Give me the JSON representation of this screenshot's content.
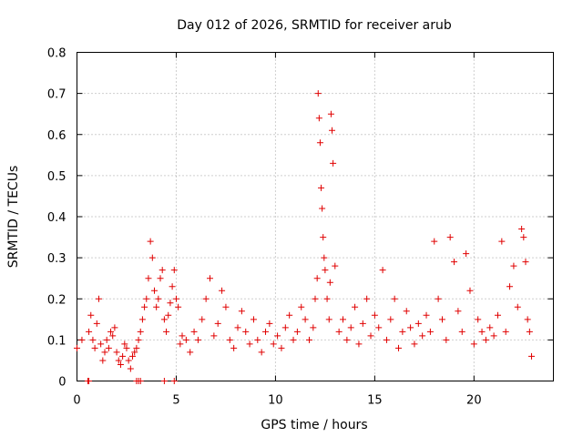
{
  "chart_data": {
    "type": "scatter",
    "title": "Day 012 of 2026, SRMTID for receiver arub",
    "xlabel": "GPS time / hours",
    "ylabel": "SRMTID / TECUs",
    "xlim": [
      0,
      24
    ],
    "ylim": [
      0,
      0.8
    ],
    "x_ticks": [
      0,
      5,
      10,
      15,
      20
    ],
    "x_tick_labels": [
      "0",
      "5",
      "10",
      "15",
      "20"
    ],
    "y_ticks": [
      0,
      0.1,
      0.2,
      0.3,
      0.4,
      0.5,
      0.6,
      0.7,
      0.8
    ],
    "y_tick_labels": [
      "0",
      "0.1",
      "0.2",
      "0.3",
      "0.4",
      "0.5",
      "0.6",
      "0.7",
      "0.8"
    ],
    "grid": true,
    "marker": "plus",
    "color": "#e00000",
    "series": [
      {
        "name": "SRMTID",
        "x": [
          0.0,
          0.25,
          0.6,
          0.7,
          0.8,
          0.9,
          1.0,
          1.1,
          1.2,
          1.3,
          1.4,
          1.5,
          1.6,
          1.7,
          1.8,
          1.9,
          2.0,
          2.1,
          2.2,
          2.3,
          2.4,
          2.5,
          2.6,
          2.7,
          2.8,
          2.9,
          3.0,
          3.1,
          3.2,
          3.3,
          3.4,
          3.5,
          3.6,
          3.7,
          3.8,
          3.9,
          4.0,
          4.1,
          4.2,
          4.3,
          4.4,
          4.5,
          4.6,
          4.7,
          4.8,
          4.9,
          5.0,
          5.1,
          5.2,
          5.3,
          5.5,
          5.7,
          5.9,
          6.1,
          6.3,
          6.5,
          6.7,
          6.9,
          7.1,
          7.3,
          7.5,
          7.7,
          7.9,
          8.1,
          8.3,
          8.5,
          8.7,
          8.9,
          9.1,
          9.3,
          9.5,
          9.7,
          9.9,
          10.1,
          10.3,
          10.5,
          10.7,
          10.9,
          11.1,
          11.3,
          11.5,
          11.7,
          11.9,
          12.0,
          12.1,
          12.15,
          12.2,
          12.25,
          12.3,
          12.35,
          12.4,
          12.45,
          12.5,
          12.6,
          12.7,
          12.75,
          12.8,
          12.85,
          12.9,
          13.0,
          13.2,
          13.4,
          13.6,
          13.8,
          14.0,
          14.2,
          14.4,
          14.6,
          14.8,
          15.0,
          15.2,
          15.4,
          15.6,
          15.8,
          16.0,
          16.2,
          16.4,
          16.6,
          16.8,
          17.0,
          17.2,
          17.4,
          17.6,
          17.8,
          18.0,
          18.2,
          18.4,
          18.6,
          18.8,
          19.0,
          19.2,
          19.4,
          19.6,
          19.8,
          20.0,
          20.2,
          20.4,
          20.6,
          20.8,
          21.0,
          21.2,
          21.4,
          21.6,
          21.8,
          22.0,
          22.2,
          22.4,
          22.5,
          22.6,
          22.7,
          22.8,
          22.9,
          0.55,
          0.6,
          3.0,
          3.1,
          3.2,
          4.4,
          4.9
        ],
        "y": [
          0.08,
          0.1,
          0.12,
          0.16,
          0.1,
          0.08,
          0.14,
          0.2,
          0.09,
          0.05,
          0.07,
          0.1,
          0.08,
          0.12,
          0.11,
          0.13,
          0.07,
          0.05,
          0.04,
          0.06,
          0.09,
          0.08,
          0.05,
          0.03,
          0.06,
          0.07,
          0.08,
          0.1,
          0.12,
          0.15,
          0.18,
          0.2,
          0.25,
          0.34,
          0.3,
          0.22,
          0.18,
          0.2,
          0.25,
          0.27,
          0.15,
          0.12,
          0.16,
          0.19,
          0.23,
          0.27,
          0.2,
          0.18,
          0.09,
          0.11,
          0.1,
          0.07,
          0.12,
          0.1,
          0.15,
          0.2,
          0.25,
          0.11,
          0.14,
          0.22,
          0.18,
          0.1,
          0.08,
          0.13,
          0.17,
          0.12,
          0.09,
          0.15,
          0.1,
          0.07,
          0.12,
          0.14,
          0.09,
          0.11,
          0.08,
          0.13,
          0.16,
          0.1,
          0.12,
          0.18,
          0.15,
          0.1,
          0.13,
          0.2,
          0.25,
          0.7,
          0.64,
          0.58,
          0.47,
          0.42,
          0.35,
          0.3,
          0.27,
          0.2,
          0.15,
          0.24,
          0.65,
          0.61,
          0.53,
          0.28,
          0.12,
          0.15,
          0.1,
          0.13,
          0.18,
          0.09,
          0.14,
          0.2,
          0.11,
          0.16,
          0.13,
          0.27,
          0.1,
          0.15,
          0.2,
          0.08,
          0.12,
          0.17,
          0.13,
          0.09,
          0.14,
          0.11,
          0.16,
          0.12,
          0.34,
          0.2,
          0.15,
          0.1,
          0.35,
          0.29,
          0.17,
          0.12,
          0.31,
          0.22,
          0.09,
          0.15,
          0.12,
          0.1,
          0.13,
          0.11,
          0.16,
          0.34,
          0.12,
          0.23,
          0.28,
          0.18,
          0.37,
          0.35,
          0.29,
          0.15,
          0.12,
          0.06,
          0.0,
          0.0,
          0.0,
          0.0,
          0.0,
          0.0,
          0.0
        ]
      }
    ]
  }
}
